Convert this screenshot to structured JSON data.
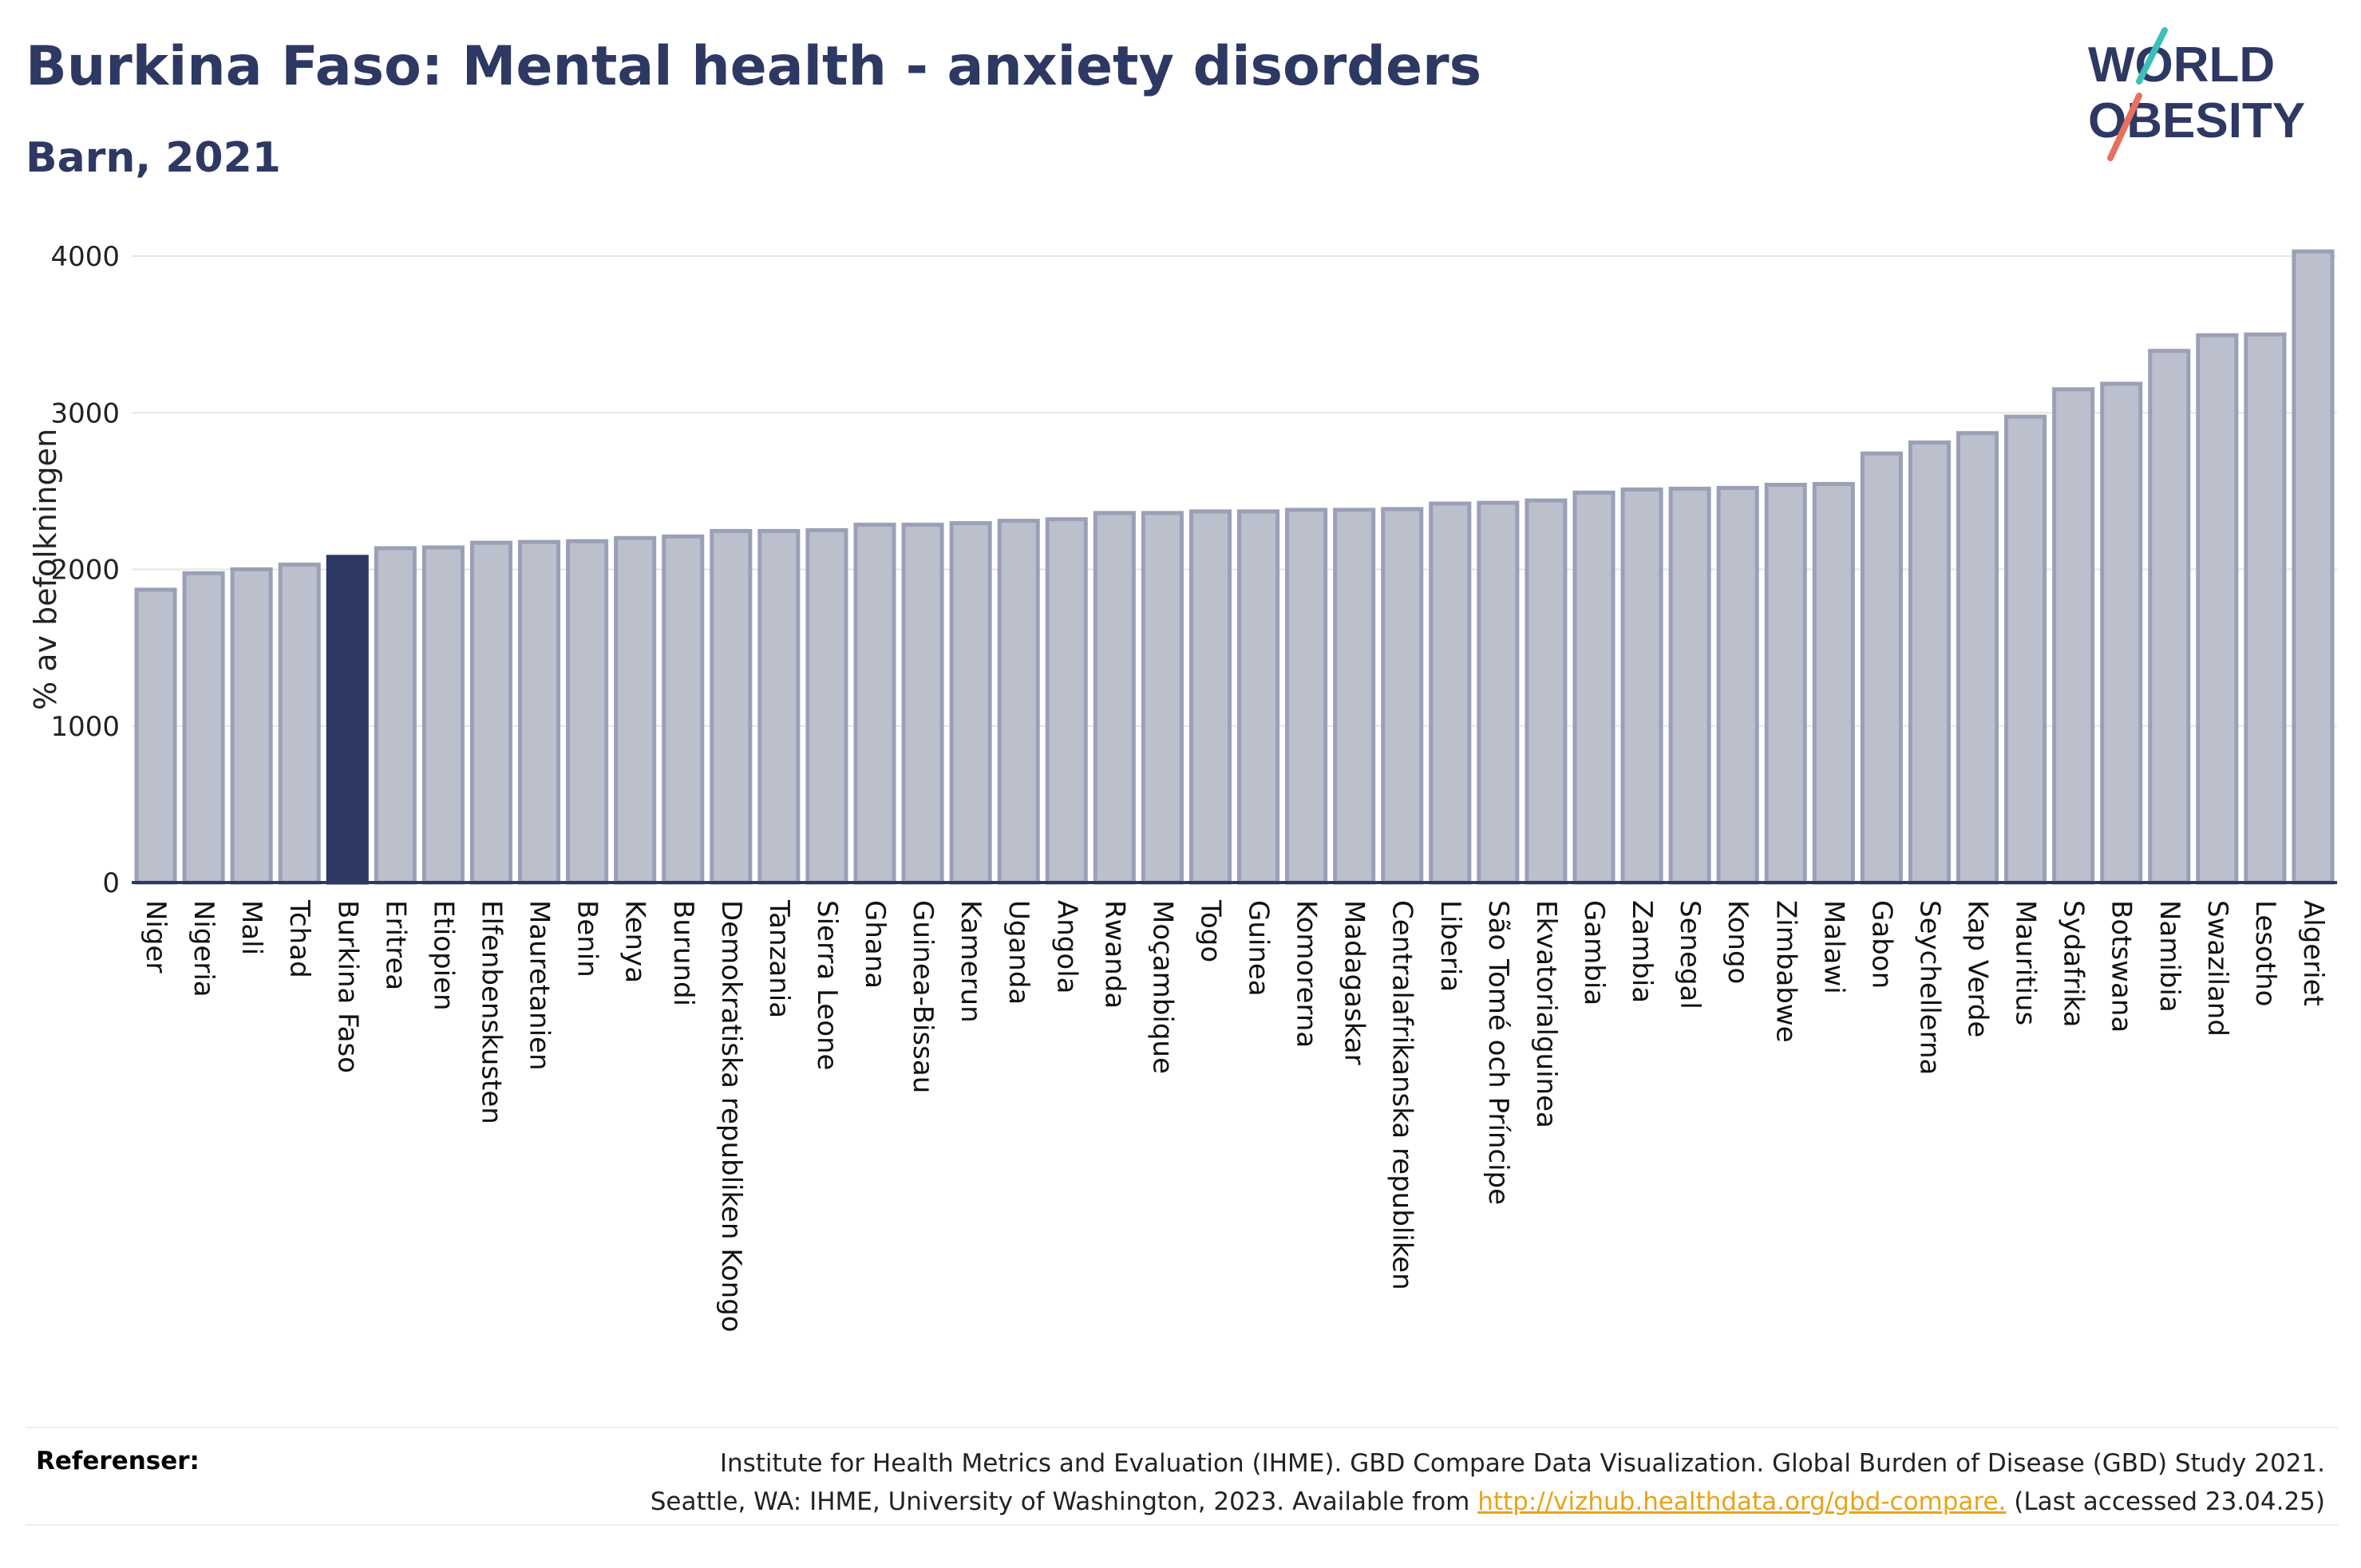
{
  "header": {
    "title": "Burkina Faso: Mental health - anxiety disorders",
    "subtitle": "Barn, 2021"
  },
  "logo": {
    "line1": "WORLD",
    "line2": "OBESITY",
    "slash_colors": [
      "#3dbfb8",
      "#e8705f"
    ],
    "text_color": "#2d3863"
  },
  "chart_data": {
    "type": "bar",
    "title": "Burkina Faso: Mental health - anxiety disorders",
    "subtitle": "Barn, 2021",
    "ylabel": "% av befolkningen",
    "xlabel": "",
    "ylim": [
      0,
      4200
    ],
    "yticks": [
      0,
      1000,
      2000,
      3000,
      4000
    ],
    "grid": true,
    "highlight": "Burkina Faso",
    "colors": {
      "bar": "#bcc0cd",
      "bar_stroke": "#9aa0b5",
      "highlight": "#2d3863",
      "axis": "#2d3863",
      "grid": "#e6e6e6"
    },
    "categories": [
      "Niger",
      "Nigeria",
      "Mali",
      "Tchad",
      "Burkina Faso",
      "Eritrea",
      "Etiopien",
      "Elfenbenskusten",
      "Mauretanien",
      "Benin",
      "Kenya",
      "Burundi",
      "Demokratiska republiken Kongo",
      "Tanzania",
      "Sierra Leone",
      "Ghana",
      "Guinea-Bissau",
      "Kamerun",
      "Uganda",
      "Angola",
      "Rwanda",
      "Moçambique",
      "Togo",
      "Guinea",
      "Komorerna",
      "Madagaskar",
      "Centralafrikanska republiken",
      "Liberia",
      "São Tomé och Príncipe",
      "Ekvatorialguinea",
      "Gambia",
      "Zambia",
      "Senegal",
      "Kongo",
      "Zimbabwe",
      "Malawi",
      "Gabon",
      "Seychellerna",
      "Kap Verde",
      "Mauritius",
      "Sydafrika",
      "Botswana",
      "Namibia",
      "Swaziland",
      "Lesotho",
      "Algeriet"
    ],
    "values": [
      1870,
      1975,
      2000,
      2030,
      2080,
      2135,
      2140,
      2170,
      2175,
      2180,
      2200,
      2210,
      2245,
      2245,
      2250,
      2285,
      2285,
      2295,
      2310,
      2320,
      2360,
      2360,
      2370,
      2370,
      2380,
      2380,
      2385,
      2420,
      2425,
      2440,
      2490,
      2510,
      2515,
      2520,
      2540,
      2545,
      2740,
      2810,
      2870,
      2975,
      3150,
      3185,
      3395,
      3495,
      3500,
      4030
    ]
  },
  "references": {
    "label": "Referenser:",
    "line1": "Institute for Health Metrics and Evaluation (IHME). GBD Compare Data Visualization. Global Burden of Disease (GBD) Study 2021.",
    "line2_prefix": "Seattle, WA: IHME, University of Washington, 2023. Available from ",
    "link_text": "http://vizhub.healthdata.org/gbd-compare.",
    "line2_suffix": " (Last accessed 23.04.25)"
  }
}
